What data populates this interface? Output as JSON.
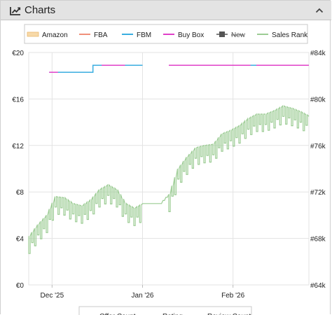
{
  "panel": {
    "title": "Charts",
    "icon": "line-chart-icon",
    "toggle_icon": "chevron-up-icon"
  },
  "chart_data": {
    "type": "line",
    "x_axis": {
      "range": [
        "2025-11-23",
        "2026-02-27"
      ],
      "ticks": [
        {
          "date": "2025-12-01",
          "label": "Dec '25"
        },
        {
          "date": "2026-01-01",
          "label": "Jan '26"
        },
        {
          "date": "2026-02-01",
          "label": "Feb '26"
        }
      ]
    },
    "y_left": {
      "range": [
        0,
        20
      ],
      "ticks": [
        {
          "value": 0,
          "label": "€0"
        },
        {
          "value": 4,
          "label": "€4"
        },
        {
          "value": 8,
          "label": "€8"
        },
        {
          "value": 12,
          "label": "€12"
        },
        {
          "value": 16,
          "label": "€16"
        },
        {
          "value": 20,
          "label": "€20"
        }
      ]
    },
    "y_right": {
      "range": [
        64000,
        84000
      ],
      "ticks": [
        {
          "value": 64000,
          "label": "#64k"
        },
        {
          "value": 68000,
          "label": "#68k"
        },
        {
          "value": 72000,
          "label": "#72k"
        },
        {
          "value": 76000,
          "label": "#76k"
        },
        {
          "value": 80000,
          "label": "#80k"
        },
        {
          "value": 84000,
          "label": "#84k"
        }
      ]
    },
    "grid": true,
    "legend_position": "top",
    "legend": [
      {
        "label": "Amazon",
        "color": "#f7d9a8",
        "marker": "area"
      },
      {
        "label": "FBA",
        "color": "#f0907a",
        "marker": "line"
      },
      {
        "label": "FBM",
        "color": "#3aaee0",
        "marker": "line"
      },
      {
        "label": "Buy Box",
        "color": "#e040c8",
        "marker": "line"
      },
      {
        "label": "New",
        "color": "#555555",
        "marker": "square",
        "disabled": true
      },
      {
        "label": "Sales Rank",
        "color": "#9ccc94",
        "marker": "line"
      }
    ],
    "legend2": [
      {
        "label": "Offer Count",
        "color": "#9c8fe0"
      },
      {
        "label": "Rating",
        "color": "#2bb39a"
      },
      {
        "label": "Review Count",
        "color": "#c8b43a"
      }
    ],
    "series": [
      {
        "name": "FBM",
        "axis": "left",
        "color": "#3aaee0",
        "points": [
          {
            "date": "2025-11-30",
            "value": 18.3
          },
          {
            "date": "2025-12-15",
            "value": 18.3
          },
          {
            "date": "2025-12-15",
            "value": 18.9
          },
          {
            "date": "2026-01-01",
            "value": 18.9
          },
          null,
          {
            "date": "2026-01-10",
            "value": 18.9
          },
          {
            "date": "2026-02-27",
            "value": 18.9
          }
        ]
      },
      {
        "name": "Buy Box",
        "axis": "left",
        "color": "#e040c8",
        "points": [
          {
            "date": "2025-11-30",
            "value": 18.3
          },
          {
            "date": "2025-12-03",
            "value": 18.3
          },
          null,
          {
            "date": "2025-12-18",
            "value": 18.9
          },
          {
            "date": "2025-12-26",
            "value": 18.9
          },
          null,
          {
            "date": "2026-01-10",
            "value": 18.9
          },
          {
            "date": "2026-02-07",
            "value": 18.9
          },
          null,
          {
            "date": "2026-02-09",
            "value": 18.9
          },
          {
            "date": "2026-02-27",
            "value": 18.9
          }
        ]
      },
      {
        "name": "Sales Rank",
        "axis": "right",
        "color": "#9ccc94",
        "points": [
          {
            "date": "2025-11-23",
            "value": 68200
          },
          {
            "date": "2025-11-26",
            "value": 69200
          },
          {
            "date": "2025-11-29",
            "value": 70000
          },
          {
            "date": "2025-12-02",
            "value": 71600
          },
          {
            "date": "2025-12-05",
            "value": 71500
          },
          {
            "date": "2025-12-08",
            "value": 71000
          },
          {
            "date": "2025-12-11",
            "value": 70800
          },
          {
            "date": "2025-12-14",
            "value": 71300
          },
          {
            "date": "2025-12-17",
            "value": 72200
          },
          {
            "date": "2025-12-20",
            "value": 72600
          },
          {
            "date": "2025-12-23",
            "value": 72200
          },
          {
            "date": "2025-12-26",
            "value": 71000
          },
          {
            "date": "2025-12-29",
            "value": 70600
          },
          {
            "date": "2026-01-01",
            "value": 71000
          },
          {
            "date": "2026-01-04",
            "value": 71000
          },
          {
            "date": "2026-01-07",
            "value": 71000
          },
          {
            "date": "2026-01-10",
            "value": 71800
          },
          {
            "date": "2026-01-13",
            "value": 74000
          },
          {
            "date": "2026-01-16",
            "value": 75000
          },
          {
            "date": "2026-01-19",
            "value": 75800
          },
          {
            "date": "2026-01-22",
            "value": 76000
          },
          {
            "date": "2026-01-25",
            "value": 76100
          },
          {
            "date": "2026-01-28",
            "value": 77000
          },
          {
            "date": "2026-01-31",
            "value": 77300
          },
          {
            "date": "2026-02-03",
            "value": 77700
          },
          {
            "date": "2026-02-06",
            "value": 78300
          },
          {
            "date": "2026-02-09",
            "value": 78700
          },
          {
            "date": "2026-02-12",
            "value": 78700
          },
          {
            "date": "2026-02-15",
            "value": 79000
          },
          {
            "date": "2026-02-18",
            "value": 79400
          },
          {
            "date": "2026-02-21",
            "value": 79200
          },
          {
            "date": "2026-02-24",
            "value": 78900
          },
          {
            "date": "2026-02-27",
            "value": 78500
          }
        ]
      }
    ]
  },
  "colors": {
    "header_bg": "#e3e3e3",
    "grid": "#e3e3e3",
    "axis_text": "#222222"
  }
}
